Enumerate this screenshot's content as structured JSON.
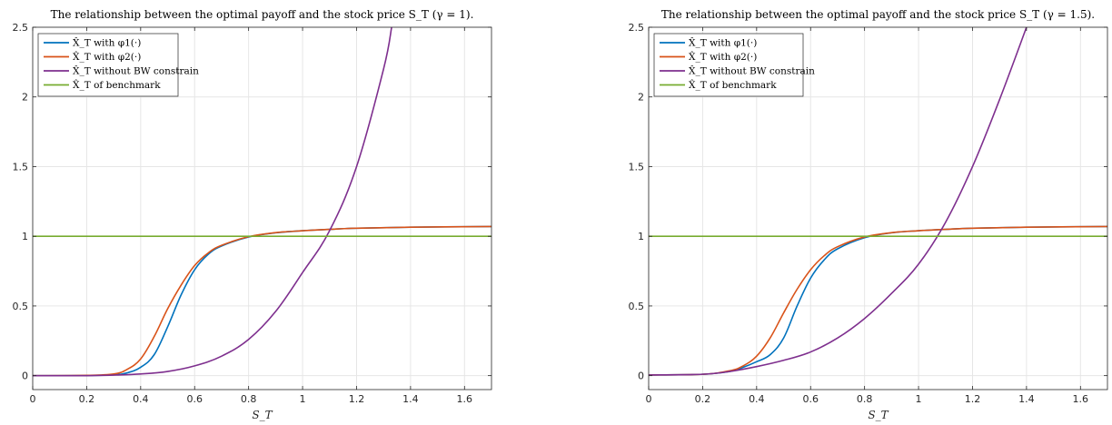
{
  "chart_data": [
    {
      "type": "line",
      "title": "The relationship between the optimal payoff and the stock price S_T (γ = 1).",
      "xlabel": "S_T",
      "ylabel": "",
      "xlim": [
        0,
        1.7
      ],
      "ylim": [
        -0.1,
        2.5
      ],
      "xticks": [
        "0",
        "0.2",
        "0.4",
        "0.6",
        "0.8",
        "1",
        "1.2",
        "1.4",
        "1.6"
      ],
      "yticks": [
        "0",
        "0.5",
        "1",
        "1.5",
        "2",
        "2.5"
      ],
      "grid": true,
      "legend_position": "top-left",
      "series": [
        {
          "name": "X̂_T with φ1(·)",
          "color": "#0072BD",
          "x": [
            0,
            0.2,
            0.3,
            0.35,
            0.4,
            0.45,
            0.5,
            0.55,
            0.6,
            0.65,
            0.7,
            0.8,
            0.9,
            1.0,
            1.1,
            1.2,
            1.4,
            1.7
          ],
          "y": [
            0,
            0.001,
            0.006,
            0.02,
            0.06,
            0.15,
            0.35,
            0.58,
            0.76,
            0.87,
            0.93,
            0.995,
            1.025,
            1.04,
            1.05,
            1.058,
            1.065,
            1.07
          ]
        },
        {
          "name": "X̂_T with φ2(·)",
          "color": "#D95319",
          "x": [
            0,
            0.2,
            0.3,
            0.35,
            0.4,
            0.45,
            0.5,
            0.55,
            0.6,
            0.65,
            0.7,
            0.8,
            0.9,
            1.0,
            1.1,
            1.2,
            1.4,
            1.7
          ],
          "y": [
            0,
            0.002,
            0.012,
            0.045,
            0.12,
            0.28,
            0.48,
            0.65,
            0.79,
            0.88,
            0.935,
            0.997,
            1.026,
            1.04,
            1.05,
            1.058,
            1.065,
            1.07
          ]
        },
        {
          "name": "X̂_T without BW constrain",
          "color": "#7E2F8E",
          "x": [
            0,
            0.2,
            0.3,
            0.4,
            0.5,
            0.6,
            0.7,
            0.8,
            0.9,
            1.0,
            1.1,
            1.2,
            1.3,
            1.33
          ],
          "y": [
            0,
            0.0,
            0.004,
            0.012,
            0.03,
            0.07,
            0.14,
            0.26,
            0.46,
            0.74,
            1.04,
            1.5,
            2.2,
            2.5
          ]
        },
        {
          "name": "X̂_T of benchmark",
          "color": "#77AC30",
          "x": [
            0,
            1.7
          ],
          "y": [
            1,
            1
          ]
        }
      ]
    },
    {
      "type": "line",
      "title": "The relationship between the optimal payoff and the stock price S_T (γ = 1.5).",
      "xlabel": "S_T",
      "ylabel": "",
      "xlim": [
        0,
        1.7
      ],
      "ylim": [
        -0.1,
        2.5
      ],
      "xticks": [
        "0",
        "0.2",
        "0.4",
        "0.6",
        "0.8",
        "1",
        "1.2",
        "1.4",
        "1.6"
      ],
      "yticks": [
        "0",
        "0.5",
        "1",
        "1.5",
        "2",
        "2.5"
      ],
      "grid": true,
      "legend_position": "top-left",
      "series": [
        {
          "name": "X̂_T with φ1(·)",
          "color": "#0072BD",
          "x": [
            0,
            0.2,
            0.3,
            0.35,
            0.4,
            0.45,
            0.5,
            0.55,
            0.6,
            0.65,
            0.7,
            0.8,
            0.9,
            1.0,
            1.1,
            1.2,
            1.4,
            1.7
          ],
          "y": [
            0.005,
            0.01,
            0.03,
            0.06,
            0.1,
            0.15,
            0.27,
            0.5,
            0.7,
            0.83,
            0.91,
            0.99,
            1.025,
            1.04,
            1.05,
            1.058,
            1.065,
            1.07
          ]
        },
        {
          "name": "X̂_T with φ2(·)",
          "color": "#D95319",
          "x": [
            0,
            0.2,
            0.3,
            0.35,
            0.4,
            0.45,
            0.5,
            0.55,
            0.6,
            0.65,
            0.7,
            0.8,
            0.9,
            1.0,
            1.1,
            1.2,
            1.4,
            1.7
          ],
          "y": [
            0.005,
            0.01,
            0.035,
            0.07,
            0.14,
            0.27,
            0.45,
            0.62,
            0.76,
            0.86,
            0.925,
            0.995,
            1.026,
            1.04,
            1.05,
            1.058,
            1.065,
            1.07
          ]
        },
        {
          "name": "X̂_T without BW constrain",
          "color": "#7E2F8E",
          "x": [
            0,
            0.2,
            0.3,
            0.4,
            0.5,
            0.6,
            0.7,
            0.8,
            0.9,
            1.0,
            1.1,
            1.2,
            1.3,
            1.4
          ],
          "y": [
            0.005,
            0.01,
            0.03,
            0.065,
            0.11,
            0.17,
            0.27,
            0.41,
            0.59,
            0.8,
            1.1,
            1.5,
            1.98,
            2.5
          ]
        },
        {
          "name": "X̂_T of benchmark",
          "color": "#77AC30",
          "x": [
            0,
            1.7
          ],
          "y": [
            1,
            1
          ]
        }
      ]
    }
  ]
}
